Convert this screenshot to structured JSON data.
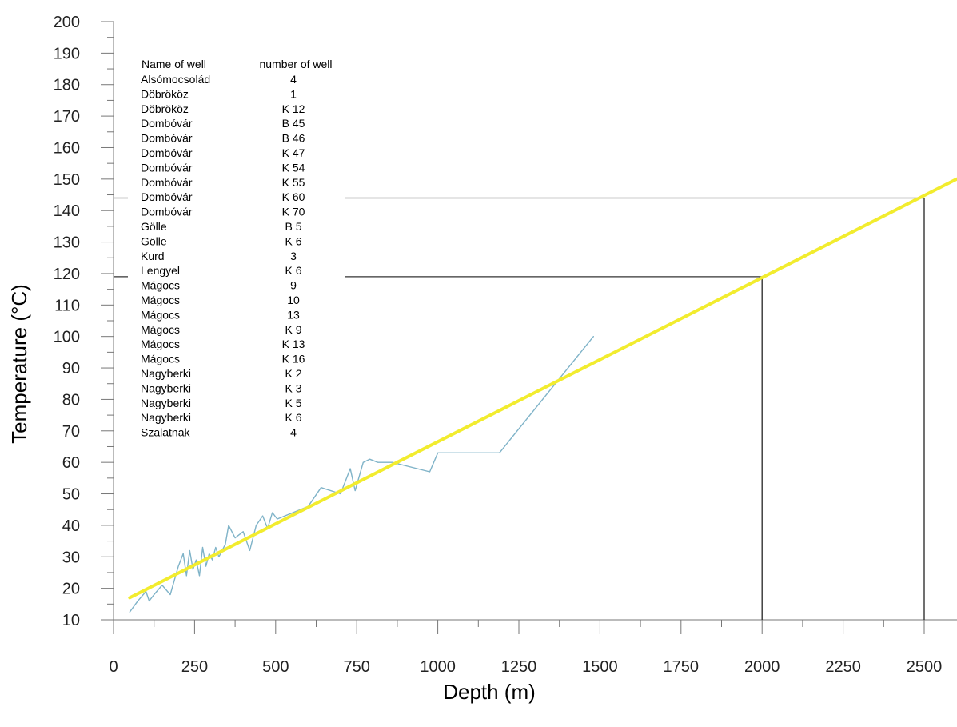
{
  "chart_data": {
    "type": "line",
    "xlabel": "Depth (m)",
    "ylabel": "Temperature (°C)",
    "xlim": [
      0,
      2600
    ],
    "ylim": [
      10,
      200
    ],
    "xticks": [
      0,
      250,
      500,
      750,
      1000,
      1250,
      1500,
      1750,
      2000,
      2250,
      2500
    ],
    "yticks": [
      10,
      20,
      30,
      40,
      50,
      60,
      70,
      80,
      90,
      100,
      110,
      120,
      130,
      140,
      150,
      160,
      170,
      180,
      190,
      200
    ],
    "grid": false,
    "series": [
      {
        "color": "#7fb3c8",
        "x": [
          50,
          75,
          100,
          110,
          125,
          150,
          175,
          200,
          215,
          225,
          235,
          245,
          255,
          265,
          275,
          285,
          295,
          305,
          315,
          325,
          335,
          345,
          355,
          375,
          400,
          420,
          440,
          460,
          475,
          490,
          505,
          600,
          640,
          700,
          730,
          745,
          770,
          790,
          815,
          860,
          975,
          1000,
          1190,
          1480
        ],
        "y": [
          12.5,
          16,
          19,
          16,
          18,
          21,
          18,
          27,
          31,
          24,
          32,
          26,
          29,
          24,
          33,
          27,
          31,
          29,
          33,
          30,
          32,
          34,
          40,
          36,
          38,
          32,
          40,
          43,
          39,
          44,
          42,
          46,
          52,
          50,
          58,
          51,
          60,
          61,
          60,
          60,
          57,
          63,
          63,
          100
        ]
      },
      {
        "color": "#f2ec2e",
        "x": [
          50,
          2600
        ],
        "y": [
          17,
          150
        ]
      }
    ],
    "reference_lines": [
      {
        "depth": 2000,
        "temperature": 119
      },
      {
        "depth": 2500,
        "temperature": 144
      }
    ],
    "legend": {
      "headers": [
        "Name of well",
        "number of well"
      ],
      "rows": [
        [
          "Alsómocsolád",
          "4"
        ],
        [
          "Döbrököz",
          "1"
        ],
        [
          "Döbrököz",
          "K 12"
        ],
        [
          "Dombóvár",
          "B 45"
        ],
        [
          "Dombóvár",
          "B 46"
        ],
        [
          "Dombóvár",
          "K 47"
        ],
        [
          "Dombóvár",
          "K 54"
        ],
        [
          "Dombóvár",
          "K 55"
        ],
        [
          "Dombóvár",
          "K 60"
        ],
        [
          "Dombóvár",
          "K 70"
        ],
        [
          "Gölle",
          "B 5"
        ],
        [
          "Gölle",
          "K 6"
        ],
        [
          "Kurd",
          "3"
        ],
        [
          "Lengyel",
          "K 6"
        ],
        [
          "Mágocs",
          "9"
        ],
        [
          "Mágocs",
          "10"
        ],
        [
          "Mágocs",
          "13"
        ],
        [
          "Mágocs",
          "K 9"
        ],
        [
          "Mágocs",
          "K 13"
        ],
        [
          "Mágocs",
          "K 16"
        ],
        [
          "Nagyberki",
          "K 2"
        ],
        [
          "Nagyberki",
          "K 3"
        ],
        [
          "Nagyberki",
          "K 5"
        ],
        [
          "Nagyberki",
          "K 6"
        ],
        [
          "Szalatnak",
          "4"
        ]
      ]
    }
  }
}
